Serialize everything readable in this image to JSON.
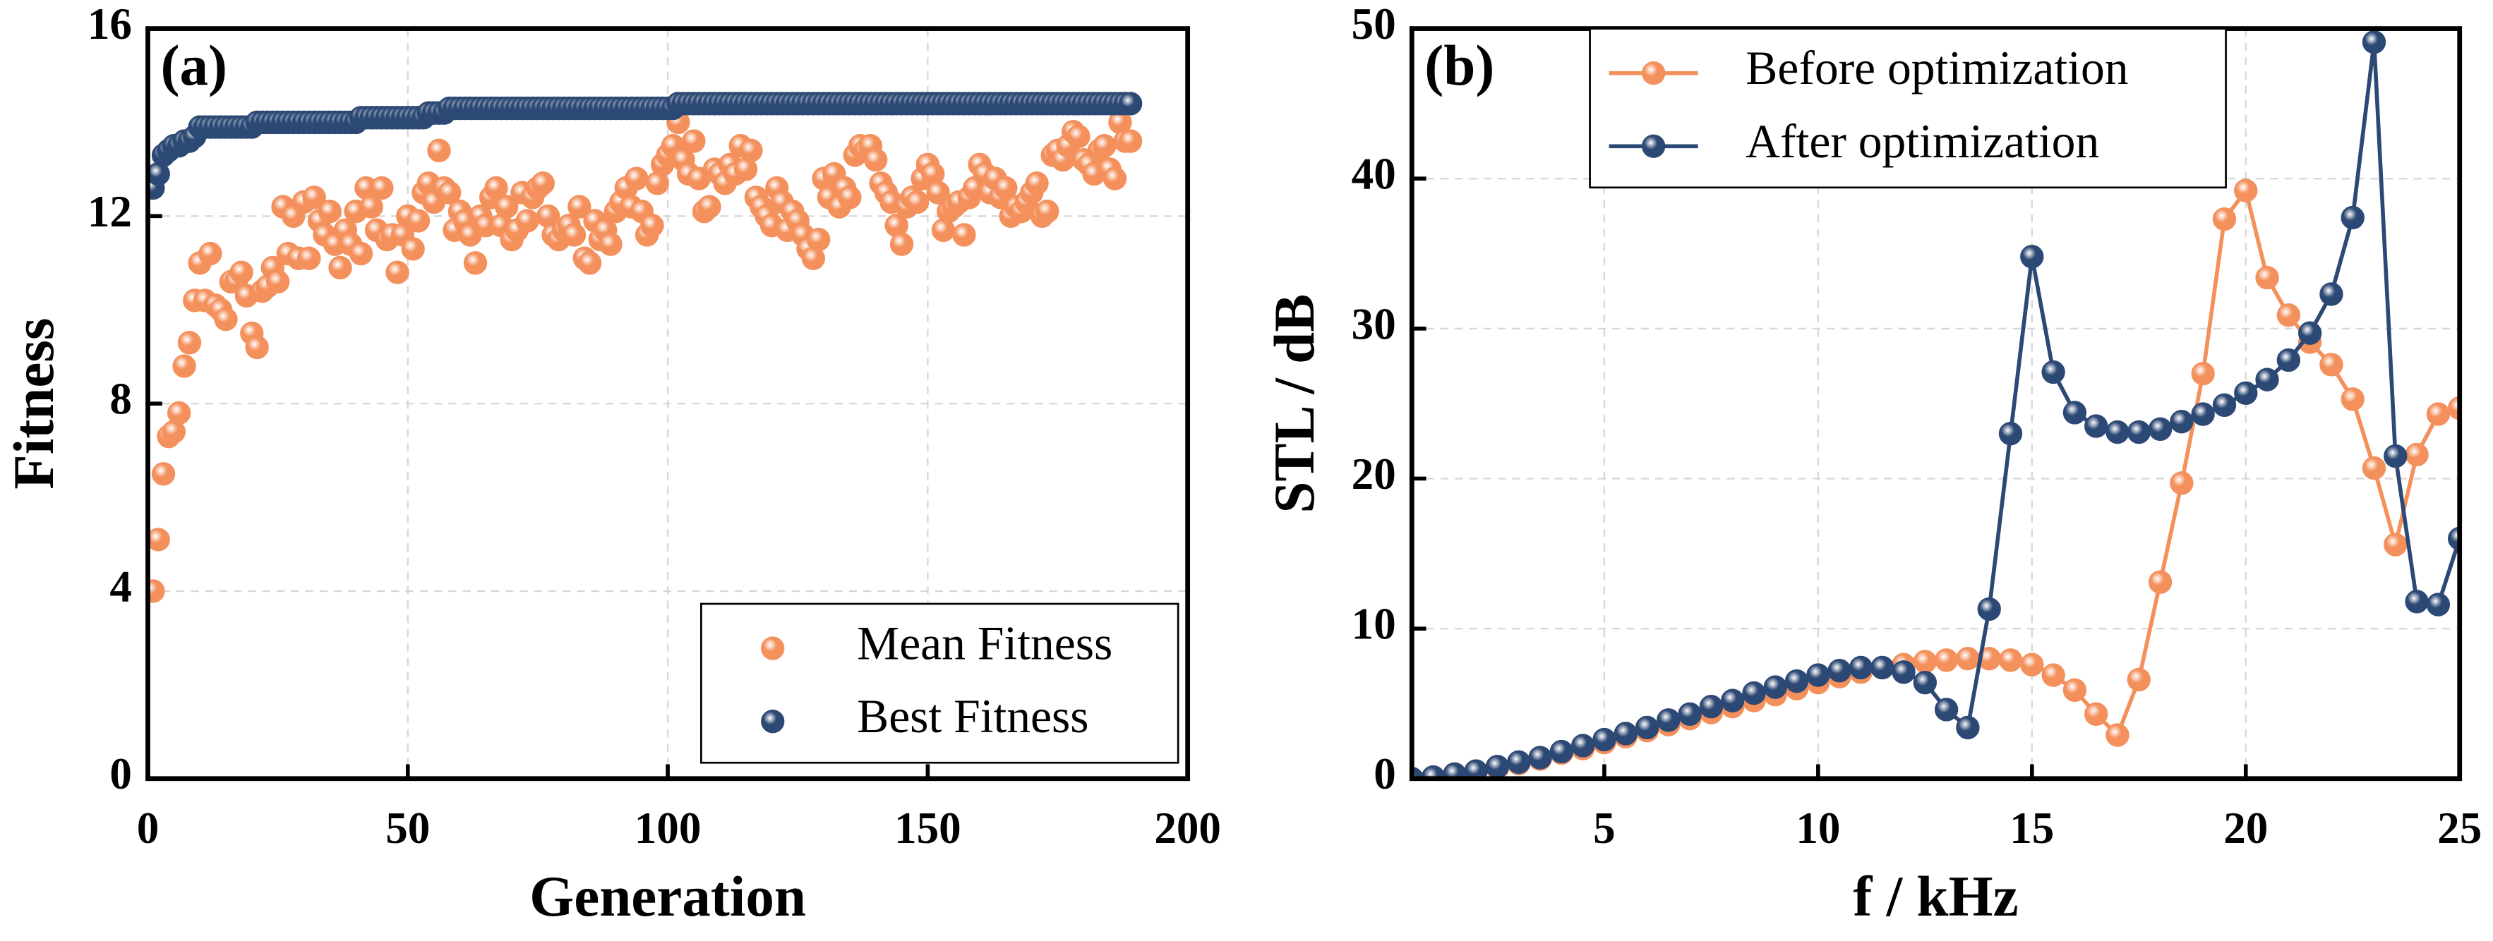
{
  "chart_data": [
    {
      "type": "scatter",
      "annotation": "(a)",
      "xlabel": "Generation",
      "ylabel": "Fitness",
      "xlim": [
        0,
        200
      ],
      "xticks": [
        0,
        50,
        100,
        150,
        200
      ],
      "ylim": [
        0,
        16
      ],
      "yticks": [
        0,
        4,
        8,
        12,
        16
      ],
      "grid": true,
      "legend": "lower right",
      "x": [
        1,
        2,
        3,
        4,
        5,
        6,
        7,
        8,
        9,
        10,
        11,
        12,
        13,
        14,
        15,
        16,
        17,
        18,
        19,
        20,
        21,
        22,
        23,
        24,
        25,
        26,
        27,
        28,
        29,
        30,
        31,
        32,
        33,
        34,
        35,
        36,
        37,
        38,
        39,
        40,
        41,
        42,
        43,
        44,
        45,
        46,
        47,
        48,
        49,
        50,
        51,
        52,
        53,
        54,
        55,
        56,
        57,
        58,
        59,
        60,
        61,
        62,
        63,
        64,
        65,
        66,
        67,
        68,
        69,
        70,
        71,
        72,
        73,
        74,
        75,
        76,
        77,
        78,
        79,
        80,
        81,
        82,
        83,
        84,
        85,
        86,
        87,
        88,
        89,
        90,
        91,
        92,
        93,
        94,
        95,
        96,
        97,
        98,
        99,
        100,
        101,
        102,
        103,
        104,
        105,
        106,
        107,
        108,
        109,
        110,
        111,
        112,
        113,
        114,
        115,
        116,
        117,
        118,
        119,
        120,
        121,
        122,
        123,
        124,
        125,
        126,
        127,
        128,
        129,
        130,
        131,
        132,
        133,
        134,
        135,
        136,
        137,
        138,
        139,
        140,
        141,
        142,
        143,
        144,
        145,
        146,
        147,
        148,
        149,
        150,
        151,
        152,
        153,
        154,
        155,
        156,
        157,
        158,
        159,
        160,
        161,
        162,
        163,
        164,
        165,
        166,
        167,
        168,
        169,
        170,
        171,
        172,
        173,
        174,
        175,
        176,
        177,
        178,
        179,
        180,
        181,
        182,
        183,
        184,
        185,
        186,
        187,
        188,
        189
      ],
      "series": [
        {
          "name": "Mean Fitness",
          "color": "#f4905c",
          "values": [
            4.0,
            5.1,
            6.5,
            7.3,
            7.4,
            7.8,
            8.8,
            9.3,
            10.2,
            11.0,
            10.2,
            11.2,
            10.1,
            10.0,
            9.8,
            10.6,
            10.6,
            10.8,
            10.3,
            9.5,
            9.2,
            10.4,
            10.5,
            10.9,
            10.6,
            12.2,
            11.2,
            12.0,
            11.1,
            12.3,
            11.1,
            12.4,
            11.9,
            11.6,
            12.1,
            11.4,
            10.9,
            11.7,
            11.4,
            12.1,
            11.2,
            12.6,
            12.2,
            11.7,
            12.6,
            11.5,
            11.6,
            10.8,
            11.6,
            12.0,
            11.3,
            11.9,
            12.5,
            12.7,
            12.3,
            13.4,
            12.6,
            12.5,
            11.7,
            12.1,
            11.9,
            11.6,
            11.0,
            12.0,
            11.8,
            12.4,
            12.6,
            11.8,
            12.2,
            11.5,
            11.7,
            12.5,
            11.9,
            12.4,
            12.6,
            12.7,
            12.0,
            11.6,
            11.5,
            11.7,
            11.8,
            11.6,
            12.2,
            11.1,
            11.0,
            11.9,
            11.5,
            11.7,
            11.4,
            12.1,
            12.3,
            12.6,
            12.2,
            12.8,
            12.1,
            11.6,
            11.8,
            12.7,
            13.1,
            13.3,
            13.5,
            14.0,
            13.2,
            12.9,
            13.6,
            12.8,
            12.1,
            12.2,
            13.0,
            12.9,
            12.7,
            13.1,
            12.9,
            13.5,
            13.0,
            13.4,
            12.4,
            12.2,
            12.0,
            11.8,
            12.6,
            12.3,
            11.7,
            12.1,
            11.9,
            11.6,
            11.3,
            11.1,
            11.5,
            12.8,
            12.4,
            12.9,
            12.2,
            12.6,
            12.4,
            13.3,
            13.5,
            13.4,
            13.5,
            13.2,
            12.7,
            12.5,
            12.3,
            11.8,
            11.4,
            12.2,
            12.4,
            12.3,
            12.8,
            13.1,
            12.9,
            12.5,
            11.7,
            12.1,
            12.2,
            12.3,
            11.6,
            12.4,
            12.6,
            13.1,
            12.9,
            12.5,
            12.8,
            12.4,
            12.6,
            12.0,
            12.2,
            12.1,
            12.3,
            12.5,
            12.7,
            12.0,
            12.1,
            13.3,
            13.4,
            13.2,
            13.5,
            13.8,
            13.7,
            13.2,
            13.1,
            12.9,
            13.4,
            13.5,
            13.0,
            12.8,
            14.0,
            13.6,
            13.6
          ]
        },
        {
          "name": "Best Fitness",
          "color": "#2c4874",
          "values": [
            12.6,
            12.9,
            13.3,
            13.4,
            13.5,
            13.5,
            13.6,
            13.6,
            13.7,
            13.9,
            13.9,
            13.9,
            13.9,
            13.9,
            13.9,
            13.9,
            13.9,
            13.9,
            13.9,
            13.9,
            14.0,
            14.0,
            14.0,
            14.0,
            14.0,
            14.0,
            14.0,
            14.0,
            14.0,
            14.0,
            14.0,
            14.0,
            14.0,
            14.0,
            14.0,
            14.0,
            14.0,
            14.0,
            14.0,
            14.0,
            14.1,
            14.1,
            14.1,
            14.1,
            14.1,
            14.1,
            14.1,
            14.1,
            14.1,
            14.1,
            14.1,
            14.1,
            14.1,
            14.2,
            14.2,
            14.2,
            14.2,
            14.3,
            14.3,
            14.3,
            14.3,
            14.3,
            14.3,
            14.3,
            14.3,
            14.3,
            14.3,
            14.3,
            14.3,
            14.3,
            14.3,
            14.3,
            14.3,
            14.3,
            14.3,
            14.3,
            14.3,
            14.3,
            14.3,
            14.3,
            14.3,
            14.3,
            14.3,
            14.3,
            14.3,
            14.3,
            14.3,
            14.3,
            14.3,
            14.3,
            14.3,
            14.3,
            14.3,
            14.3,
            14.3,
            14.3,
            14.3,
            14.3,
            14.3,
            14.3,
            14.3,
            14.4,
            14.4,
            14.4,
            14.4,
            14.4,
            14.4,
            14.4,
            14.4,
            14.4,
            14.4,
            14.4,
            14.4,
            14.4,
            14.4,
            14.4,
            14.4,
            14.4,
            14.4,
            14.4,
            14.4,
            14.4,
            14.4,
            14.4,
            14.4,
            14.4,
            14.4,
            14.4,
            14.4,
            14.4,
            14.4,
            14.4,
            14.4,
            14.4,
            14.4,
            14.4,
            14.4,
            14.4,
            14.4,
            14.4,
            14.4,
            14.4,
            14.4,
            14.4,
            14.4,
            14.4,
            14.4,
            14.4,
            14.4,
            14.4,
            14.4,
            14.4,
            14.4,
            14.4,
            14.4,
            14.4,
            14.4,
            14.4,
            14.4,
            14.4,
            14.4,
            14.4,
            14.4,
            14.4,
            14.4,
            14.4,
            14.4,
            14.4,
            14.4,
            14.4,
            14.4,
            14.4,
            14.4,
            14.4,
            14.4,
            14.4,
            14.4,
            14.4,
            14.4,
            14.4,
            14.4,
            14.4,
            14.4,
            14.4,
            14.4,
            14.4,
            14.4,
            14.4,
            14.4
          ]
        }
      ]
    },
    {
      "type": "line",
      "annotation": "(b)",
      "xlabel": "f / kHz",
      "ylabel": "STL / dB",
      "xlim": [
        0.5,
        25
      ],
      "xticks": [
        5,
        10,
        15,
        20,
        25
      ],
      "ylim": [
        0,
        50
      ],
      "yticks": [
        0,
        10,
        20,
        30,
        40,
        50
      ],
      "grid": true,
      "legend": "upper left",
      "x": [
        0.5,
        1,
        1.5,
        2,
        2.5,
        3,
        3.5,
        4,
        4.5,
        5,
        5.5,
        6,
        6.5,
        7,
        7.5,
        8,
        8.5,
        9,
        9.5,
        10,
        10.5,
        11,
        11.5,
        12,
        12.5,
        13,
        13.5,
        14,
        14.5,
        15,
        15.5,
        16,
        16.5,
        17,
        17.5,
        18,
        18.5,
        19,
        19.5,
        20,
        20.5,
        21,
        21.5,
        22,
        22.5,
        23,
        23.5,
        24,
        24.5,
        25
      ],
      "series": [
        {
          "name": "Before optimization",
          "color": "#f4905c",
          "values": [
            0,
            0.1,
            0.3,
            0.5,
            0.7,
            1.0,
            1.3,
            1.7,
            2.0,
            2.4,
            2.8,
            3.2,
            3.6,
            4.0,
            4.4,
            4.8,
            5.2,
            5.6,
            6.0,
            6.4,
            6.8,
            7.1,
            7.4,
            7.6,
            7.8,
            7.9,
            8.0,
            8.0,
            7.9,
            7.6,
            6.9,
            5.9,
            4.3,
            2.9,
            6.6,
            13.1,
            19.7,
            27.0,
            37.3,
            39.2,
            33.4,
            30.9,
            29.1,
            27.6,
            25.3,
            20.7,
            15.6,
            21.6,
            24.3,
            24.7
          ]
        },
        {
          "name": "After optimization",
          "color": "#2c4874",
          "values": [
            0,
            0.1,
            0.3,
            0.5,
            0.8,
            1.1,
            1.4,
            1.8,
            2.2,
            2.6,
            3.0,
            3.4,
            3.9,
            4.3,
            4.8,
            5.2,
            5.7,
            6.1,
            6.5,
            6.9,
            7.2,
            7.4,
            7.4,
            7.1,
            6.4,
            4.6,
            3.4,
            11.3,
            23.0,
            34.8,
            27.1,
            24.4,
            23.5,
            23.1,
            23.1,
            23.3,
            23.8,
            24.3,
            24.9,
            25.7,
            26.6,
            27.9,
            29.7,
            32.3,
            37.4,
            49.1,
            21.5,
            11.8,
            11.6,
            16.0
          ]
        }
      ]
    }
  ]
}
